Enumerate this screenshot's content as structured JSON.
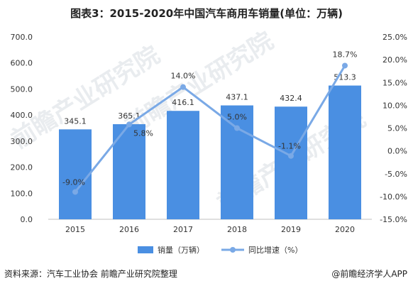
{
  "title": "图表3：2015-2020年中国汽车商用车销量(单位：万辆)",
  "chart_data": {
    "type": "bar",
    "categories": [
      "2015",
      "2016",
      "2017",
      "2018",
      "2019",
      "2020"
    ],
    "series": [
      {
        "name": "销量（万辆）",
        "type": "bar",
        "axis": "left",
        "values": [
          345.1,
          365.1,
          416.1,
          437.1,
          432.4,
          513.3
        ],
        "labels": [
          "345.1",
          "365.1",
          "416.1",
          "437.1",
          "432.4",
          "513.3"
        ],
        "color": "#4a8fe2"
      },
      {
        "name": "同比增速（%）",
        "type": "line",
        "axis": "right",
        "values": [
          -9.0,
          5.8,
          14.0,
          5.0,
          -1.1,
          18.7
        ],
        "labels": [
          "-9.0%",
          "5.8%",
          "14.0%",
          "5.0%",
          "-1.1%",
          "18.7%"
        ],
        "color": "#7aa9e6"
      }
    ],
    "y_left": {
      "min": 0,
      "max": 700,
      "step": 100,
      "ticks": [
        "0.0",
        "100.0",
        "200.0",
        "300.0",
        "400.0",
        "500.0",
        "600.0",
        "700.0"
      ]
    },
    "y_right": {
      "min": -15,
      "max": 25,
      "step": 5,
      "ticks": [
        "-15.0%",
        "-10.0%",
        "-5.0%",
        "0.0%",
        "5.0%",
        "10.0%",
        "15.0%",
        "20.0%",
        "25.0%"
      ]
    },
    "grid": false,
    "legend": "bottom-center"
  },
  "footer": {
    "source": "资料来源：汽车工业协会 前瞻产业研究院整理",
    "brand": "@前瞻经济学人APP"
  },
  "watermark": "前瞻产业研究院"
}
